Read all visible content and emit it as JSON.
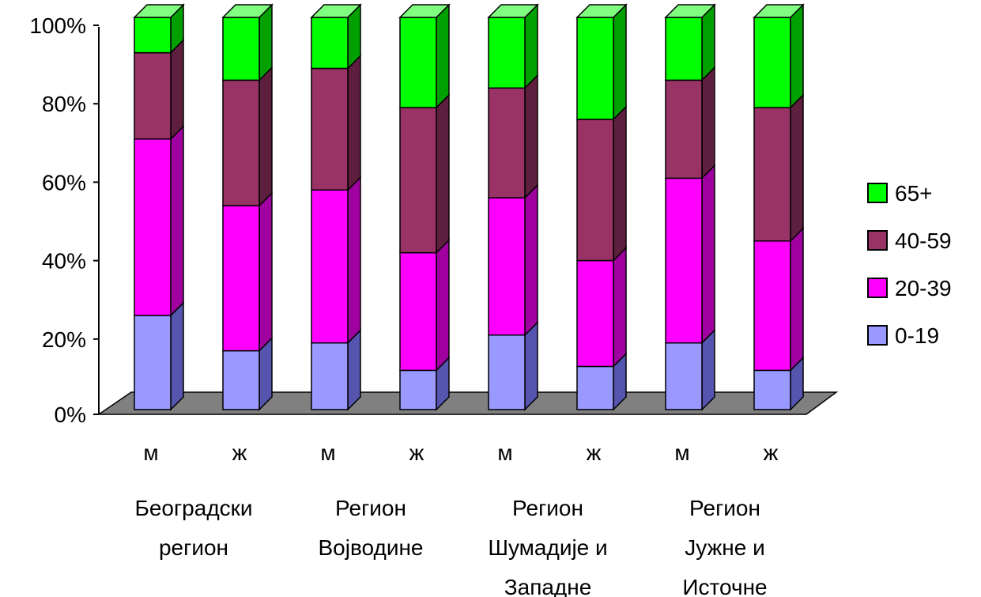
{
  "chart_data": {
    "type": "bar",
    "stacked": "percent",
    "style": "3d-column",
    "categories": [
      "м",
      "ж",
      "м",
      "ж",
      "м",
      "ж",
      "м",
      "ж"
    ],
    "groups": [
      {
        "label_lines": [
          "Београдски",
          "регион"
        ]
      },
      {
        "label_lines": [
          "Регион",
          "Војводине"
        ]
      },
      {
        "label_lines": [
          "Регион",
          "Шумадије и",
          "Западне"
        ]
      },
      {
        "label_lines": [
          "Регион",
          "Јужне и",
          "Источне"
        ]
      }
    ],
    "series": [
      {
        "name": "0-19",
        "color": "#9999ff",
        "side": "#5555b0",
        "top": "#c0c0ff",
        "values": [
          24,
          15,
          17,
          10,
          19,
          11,
          17,
          10
        ]
      },
      {
        "name": "20-39",
        "color": "#ff00ff",
        "side": "#a000a0",
        "top": "#ff80ff",
        "values": [
          45,
          37,
          39,
          30,
          35,
          27,
          42,
          33
        ]
      },
      {
        "name": "40-59",
        "color": "#993366",
        "side": "#5e1f3f",
        "top": "#b8668c",
        "values": [
          22,
          32,
          31,
          37,
          28,
          36,
          25,
          34
        ]
      },
      {
        "name": "65+",
        "color": "#00ff00",
        "side": "#00a000",
        "top": "#80ff80",
        "values": [
          9,
          16,
          13,
          23,
          18,
          26,
          16,
          23
        ]
      }
    ],
    "y_ticks": [
      "0%",
      "20%",
      "40%",
      "60%",
      "80%",
      "100%"
    ],
    "ylim": [
      0,
      100
    ],
    "legend_order": [
      "65+",
      "40-59",
      "20-39",
      "0-19"
    ],
    "legend_position": "right",
    "floor_color": "#808080",
    "grid": false
  }
}
